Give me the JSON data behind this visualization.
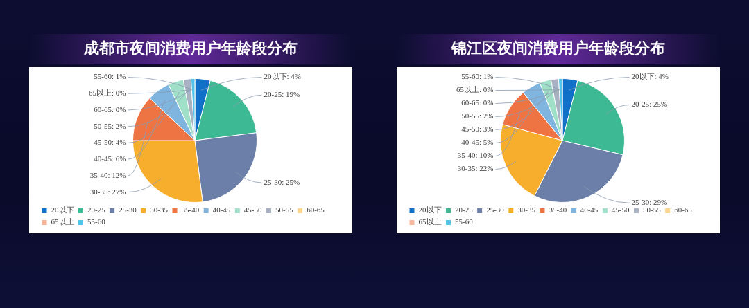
{
  "chart_data": [
    {
      "type": "pie",
      "title": "成都市夜间消费用户年龄段分布",
      "categories": [
        "20以下",
        "20-25",
        "25-30",
        "30-35",
        "35-40",
        "40-45",
        "45-50",
        "50-55",
        "60-65",
        "65以上",
        "55-60"
      ],
      "values": [
        4,
        19,
        25,
        27,
        12,
        6,
        4,
        2,
        0,
        0,
        1
      ],
      "colors": [
        "#1170c8",
        "#3dba93",
        "#6b7fa8",
        "#f8ae2d",
        "#ee7543",
        "#80b5e0",
        "#a0dfc8",
        "#a8b2c2",
        "#fdd48d",
        "#f6b59b",
        "#52c3ea"
      ],
      "value_labels": [
        "20以下: 4%",
        "20-25: 19%",
        "25-30: 25%",
        "30-35: 27%",
        "35-40: 12%",
        "40-45: 6%",
        "45-50: 4%",
        "50-55: 2%",
        "60-65: 0%",
        "65以上: 0%",
        "55-60: 1%"
      ],
      "legend": "bottom left"
    },
    {
      "type": "pie",
      "title": "锦江区夜间消费用户年龄段分布",
      "categories": [
        "20以下",
        "20-25",
        "25-30",
        "30-35",
        "35-40",
        "40-45",
        "45-50",
        "50-55",
        "60-65",
        "65以上",
        "55-60"
      ],
      "values": [
        4,
        25,
        29,
        22,
        10,
        5,
        3,
        2,
        0,
        0,
        1
      ],
      "colors": [
        "#1170c8",
        "#3dba93",
        "#6b7fa8",
        "#f8ae2d",
        "#ee7543",
        "#80b5e0",
        "#a0dfc8",
        "#a8b2c2",
        "#fdd48d",
        "#f6b59b",
        "#52c3ea"
      ],
      "value_labels": [
        "20以下: 4%",
        "20-25: 25%",
        "25-30: 29%",
        "30-35: 22%",
        "35-40: 10%",
        "40-45: 5%",
        "45-50: 3%",
        "50-55: 2%",
        "60-65: 0%",
        "65以上: 0%",
        "55-60: 1%"
      ],
      "legend": "bottom left"
    }
  ]
}
